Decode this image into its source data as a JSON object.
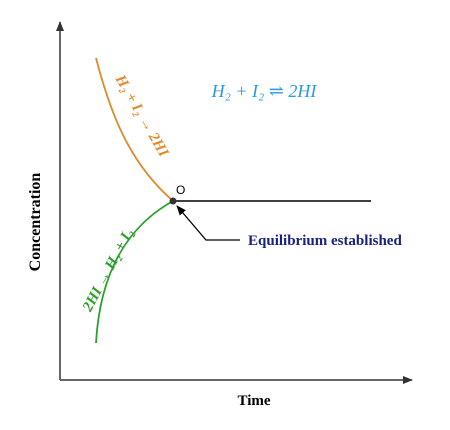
{
  "axes": {
    "y_label": "Concentration",
    "x_label": "Time"
  },
  "equation": "H₂ + I₂ ⇌ 2HI",
  "curves": [
    {
      "label": "H₂ + I₂ → 2HI"
    },
    {
      "label": "2HI → H₂ + I₂"
    }
  ],
  "point": {
    "label": "O"
  },
  "annotation": "Equilibrium established"
}
